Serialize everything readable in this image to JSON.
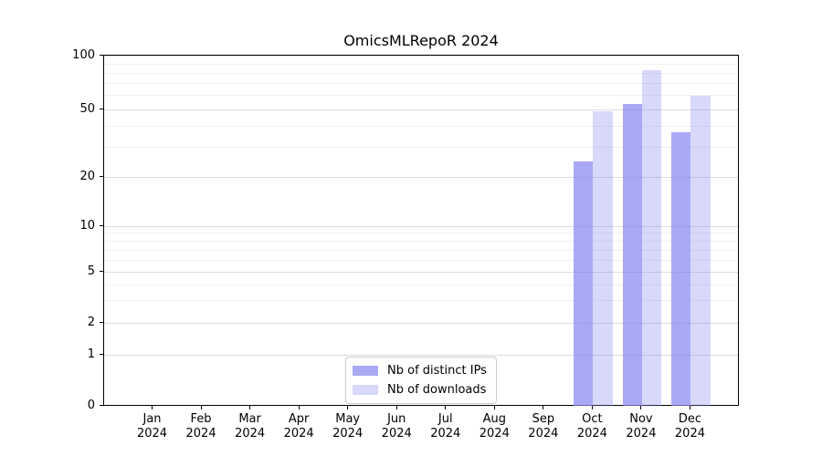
{
  "title": "OmicsMLRepoR 2024",
  "chart_data": {
    "type": "bar",
    "title": "OmicsMLRepoR 2024",
    "categories": [
      "Jan 2024",
      "Feb 2024",
      "Mar 2024",
      "Apr 2024",
      "May 2024",
      "Jun 2024",
      "Jul 2024",
      "Aug 2024",
      "Sep 2024",
      "Oct 2024",
      "Nov 2024",
      "Dec 2024"
    ],
    "series": [
      {
        "name": "Nb of distinct IPs",
        "key": "distinct-ips",
        "color": "#aaaaf5",
        "fill_rgba": "rgba(136,136,242,0.72)",
        "values": [
          0,
          0,
          0,
          0,
          0,
          0,
          0,
          0,
          0,
          25,
          54,
          37
        ]
      },
      {
        "name": "Nb of downloads",
        "key": "downloads",
        "color": "#d9d9f9",
        "fill_rgba": "rgba(136,136,242,0.33)",
        "values": [
          0,
          0,
          0,
          0,
          0,
          0,
          0,
          0,
          0,
          49,
          83,
          60
        ]
      }
    ],
    "xlabel": "",
    "ylabel": "",
    "y_axis": {
      "scale": "pseudo-log",
      "ticks": [
        0,
        1,
        2,
        5,
        10,
        20,
        50,
        100
      ],
      "minor_ticks": [
        3,
        4,
        6,
        7,
        8,
        9,
        30,
        40,
        60,
        70,
        80,
        90
      ],
      "ylim": [
        0,
        100
      ]
    },
    "grid": true,
    "legend_position": "bottom-center",
    "colors": {
      "major_grid": "#dcdcdc",
      "minor_grid": "#f0f0f0",
      "spine": "#000000",
      "background": "#ffffff"
    }
  }
}
